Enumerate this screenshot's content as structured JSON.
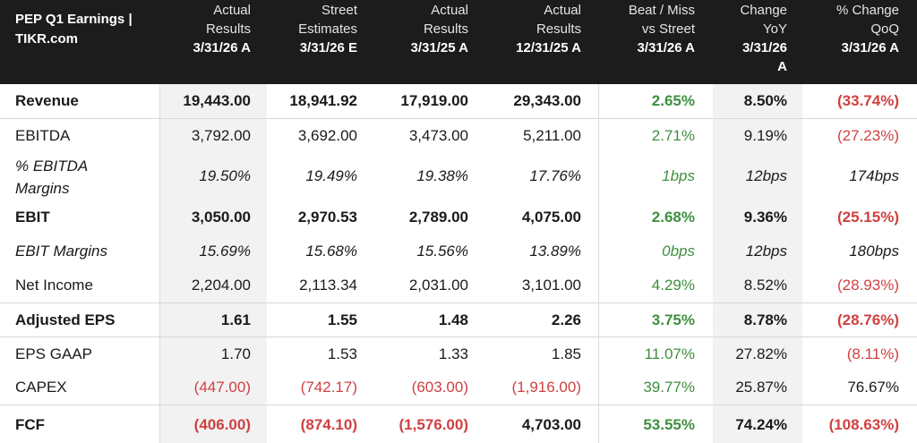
{
  "title_line1": "PEP Q1 Earnings |",
  "title_line2": "TIKR.com",
  "columns": [
    {
      "l1": "Actual",
      "l2": "Results",
      "l3": "3/31/26 A"
    },
    {
      "l1": "Street",
      "l2": "Estimates",
      "l3": "3/31/26 E"
    },
    {
      "l1": "Actual",
      "l2": "Results",
      "l3": "3/31/25 A"
    },
    {
      "l1": "Actual",
      "l2": "Results",
      "l3": "12/31/25 A"
    },
    {
      "l1": "Beat / Miss",
      "l2": "vs Street",
      "l3": "3/31/26 A"
    },
    {
      "l1": "Change",
      "l2": "YoY",
      "l3": "3/31/26",
      "l4": "A"
    },
    {
      "l1": "% Change",
      "l2": "QoQ",
      "l3": "3/31/26 A"
    }
  ],
  "rows": [
    {
      "label": "Revenue",
      "style": "bold",
      "cells": [
        "19,443.00",
        "18,941.92",
        "17,919.00",
        "29,343.00",
        "2.65%",
        "8.50%",
        "(33.74%)"
      ]
    },
    {
      "label": "EBITDA",
      "style": "normal",
      "cells": [
        "3,792.00",
        "3,692.00",
        "3,473.00",
        "5,211.00",
        "2.71%",
        "9.19%",
        "(27.23%)"
      ]
    },
    {
      "label": "% EBITDA",
      "label2": "Margins",
      "style": "italic",
      "cells": [
        "19.50%",
        "19.49%",
        "19.38%",
        "17.76%",
        "1bps",
        "12bps",
        "174bps"
      ]
    },
    {
      "label": "EBIT",
      "style": "bold",
      "cells": [
        "3,050.00",
        "2,970.53",
        "2,789.00",
        "4,075.00",
        "2.68%",
        "9.36%",
        "(25.15%)"
      ]
    },
    {
      "label": "EBIT Margins",
      "style": "italic",
      "cells": [
        "15.69%",
        "15.68%",
        "15.56%",
        "13.89%",
        "0bps",
        "12bps",
        "180bps"
      ]
    },
    {
      "label": "Net Income",
      "style": "normal",
      "cells": [
        "2,204.00",
        "2,113.34",
        "2,031.00",
        "3,101.00",
        "4.29%",
        "8.52%",
        "(28.93%)"
      ]
    },
    {
      "label": "Adjusted EPS",
      "style": "bold",
      "cells": [
        "1.61",
        "1.55",
        "1.48",
        "2.26",
        "3.75%",
        "8.78%",
        "(28.76%)"
      ]
    },
    {
      "label": "EPS GAAP",
      "style": "normal",
      "cells": [
        "1.70",
        "1.53",
        "1.33",
        "1.85",
        "11.07%",
        "27.82%",
        "(8.11%)"
      ]
    },
    {
      "label": "CAPEX",
      "style": "normal",
      "cells": [
        "(447.00)",
        "(742.17)",
        "(603.00)",
        "(1,916.00)",
        "39.77%",
        "25.87%",
        "76.67%"
      ]
    },
    {
      "label": "FCF",
      "style": "bold",
      "cells": [
        "(406.00)",
        "(874.10)",
        "(1,576.00)",
        "4,703.00",
        "53.55%",
        "74.24%",
        "(108.63%)"
      ]
    }
  ],
  "colors": {
    "header_bg": "#1c1c1c",
    "negative": "#d04040",
    "positive": "#3f8f3f",
    "shade": "#f2f2f2"
  }
}
